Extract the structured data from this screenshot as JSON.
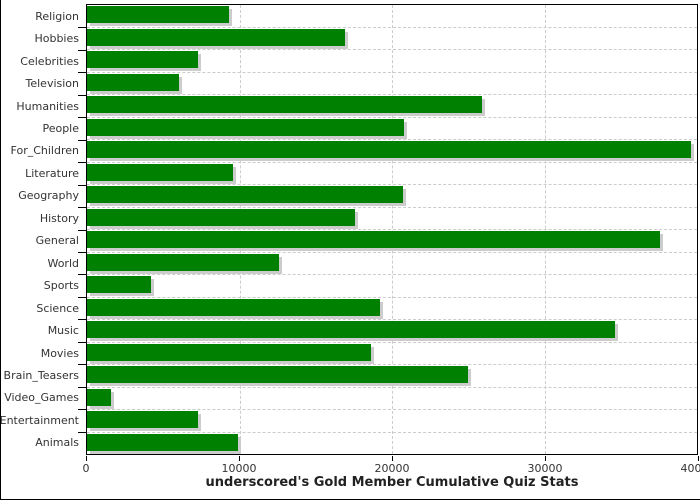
{
  "chart_data": {
    "type": "bar",
    "orientation": "horizontal",
    "title": "underscored's Gold Member Cumulative Quiz Stats",
    "categories": [
      "Religion",
      "Hobbies",
      "Celebrities",
      "Television",
      "Humanities",
      "People",
      "For_Children",
      "Literature",
      "Geography",
      "History",
      "General",
      "World",
      "Sports",
      "Science",
      "Music",
      "Movies",
      "Brain_Teasers",
      "Video_Games",
      "Entertainment",
      "Animals"
    ],
    "values": [
      9300,
      16900,
      7300,
      6000,
      25900,
      20800,
      39600,
      9600,
      20700,
      17600,
      37600,
      12600,
      4200,
      19200,
      34600,
      18600,
      25000,
      1600,
      7300,
      9900
    ],
    "xlabel": "",
    "ylabel": "",
    "xlim": [
      0,
      40000
    ],
    "x_ticks": [
      0,
      10000,
      20000,
      30000,
      40000
    ],
    "x_tick_labels": [
      "0",
      "10000",
      "20000",
      "30000",
      "40000"
    ],
    "grid": "dashed vertical gridlines at x ticks; dashed horizontal separators at category boundaries",
    "legend": "none",
    "colors": {
      "bar": "#008000",
      "bar_shadow": "#cccccc",
      "gridline": "#cccccc",
      "axis": "#000000",
      "tick_label": "#333333",
      "title": "#222222",
      "background": "#ffffff"
    }
  }
}
